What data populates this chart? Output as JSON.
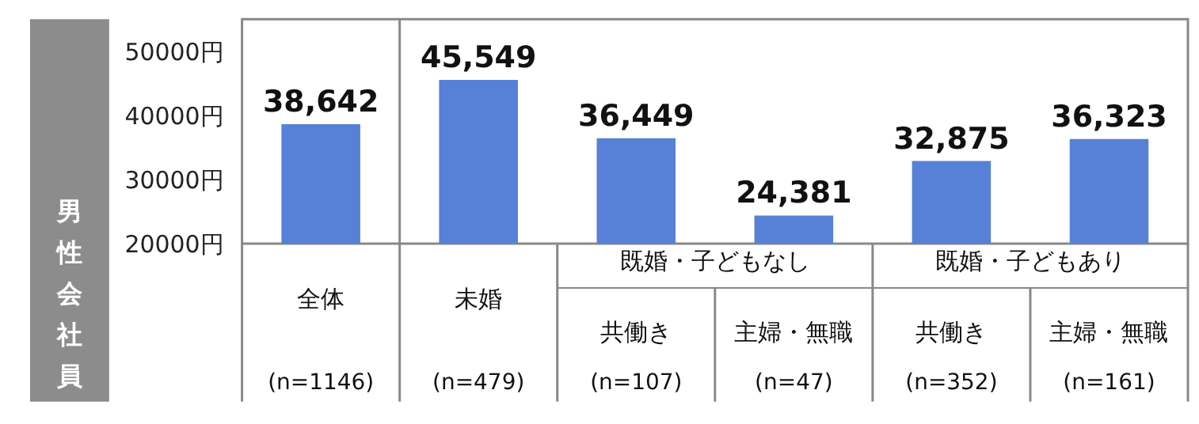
{
  "chart_data": {
    "type": "bar",
    "ylabel": "男性会社員",
    "categories": [
      "全体\n(n=1146)",
      "未婚\n(n=479)",
      "共働き\n(n=107)",
      "主婦・無職\n(n=47)",
      "共働き\n(n=352)",
      "主婦・無職\n(n=161)"
    ],
    "values": [
      38642,
      45549,
      36449,
      24381,
      32875,
      36323
    ],
    "color": "#5681d6",
    "ylim": [
      20000,
      55000
    ],
    "yticks": [
      {
        "value": 20000,
        "label": "20000円"
      },
      {
        "value": 30000,
        "label": "30000円"
      },
      {
        "value": 40000,
        "label": "40000円"
      },
      {
        "value": 50000,
        "label": "50000円"
      }
    ],
    "value_labels": [
      "38,642",
      "45,549",
      "36,449",
      "24,381",
      "32,875",
      "36,323"
    ],
    "grid": false,
    "annotations": [
      "既婚・子どもなし",
      "既婚・子どもあり"
    ]
  }
}
